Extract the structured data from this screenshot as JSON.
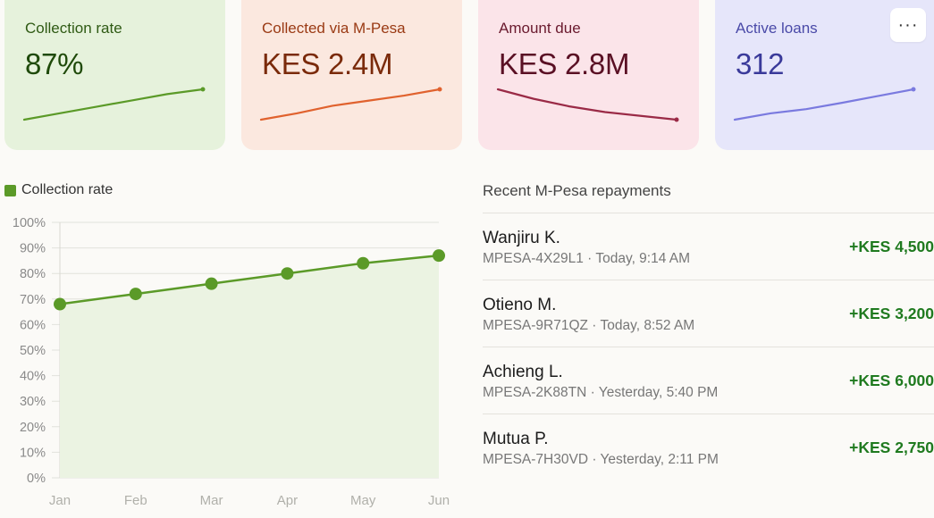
{
  "stat_cards": [
    {
      "label": "Collection rate",
      "value": "87%",
      "bg": "#e6f2dc",
      "label_color": "#2f5a14",
      "value_color": "#1f4a0a",
      "line_color": "#5b9a28",
      "trend": [
        68,
        72,
        76,
        80,
        84,
        87
      ]
    },
    {
      "label": "Collected via M-Pesa",
      "value": "KES 2.4M",
      "bg": "#fbe8df",
      "label_color": "#9a3a14",
      "value_color": "#7a2a0a",
      "line_color": "#e0622e",
      "trend": [
        1.2,
        1.45,
        1.75,
        1.95,
        2.15,
        2.4
      ]
    },
    {
      "label": "Amount due",
      "value": "KES 2.8M",
      "bg": "#fbe4e9",
      "label_color": "#6a1a2e",
      "value_color": "#5a1024",
      "line_color": "#9a2a46",
      "trend": [
        3.6,
        3.35,
        3.15,
        3.0,
        2.9,
        2.8
      ]
    },
    {
      "label": "Active loans",
      "value": "312",
      "bg": "#e6e6fa",
      "label_color": "#4a4aa8",
      "value_color": "#3a3a9a",
      "line_color": "#7a7adf",
      "trend": [
        240,
        255,
        265,
        280,
        296,
        312
      ]
    }
  ],
  "more_button": {
    "label": "···",
    "icon": "more-icon"
  },
  "chart_data": {
    "type": "area",
    "legend": "Collection rate",
    "legend_position": "top-left",
    "categories": [
      "Jan",
      "Feb",
      "Mar",
      "Apr",
      "May",
      "Jun"
    ],
    "series": [
      {
        "name": "Collection rate",
        "values": [
          68,
          72,
          76,
          80,
          84,
          87
        ],
        "color": "#5b9a28",
        "fill": "#ebf3e2"
      }
    ],
    "y_ticks": [
      "0%",
      "10%",
      "20%",
      "30%",
      "40%",
      "50%",
      "60%",
      "70%",
      "80%",
      "90%",
      "100%"
    ],
    "ylim": [
      0,
      100
    ],
    "grid": true
  },
  "repayments": {
    "title": "Recent M-Pesa repayments",
    "items": [
      {
        "name": "Wanjiru K.",
        "meta": "MPESA-4X29L1 · Today, 9:14 AM",
        "amount": "+KES 4,500"
      },
      {
        "name": "Otieno M.",
        "meta": "MPESA-9R71QZ · Today, 8:52 AM",
        "amount": "+KES 3,200"
      },
      {
        "name": "Achieng L.",
        "meta": "MPESA-2K88TN · Yesterday, 5:40 PM",
        "amount": "+KES 6,000"
      },
      {
        "name": "Mutua P.",
        "meta": "MPESA-7H30VD · Yesterday, 2:11 PM",
        "amount": "+KES 2,750"
      }
    ]
  }
}
